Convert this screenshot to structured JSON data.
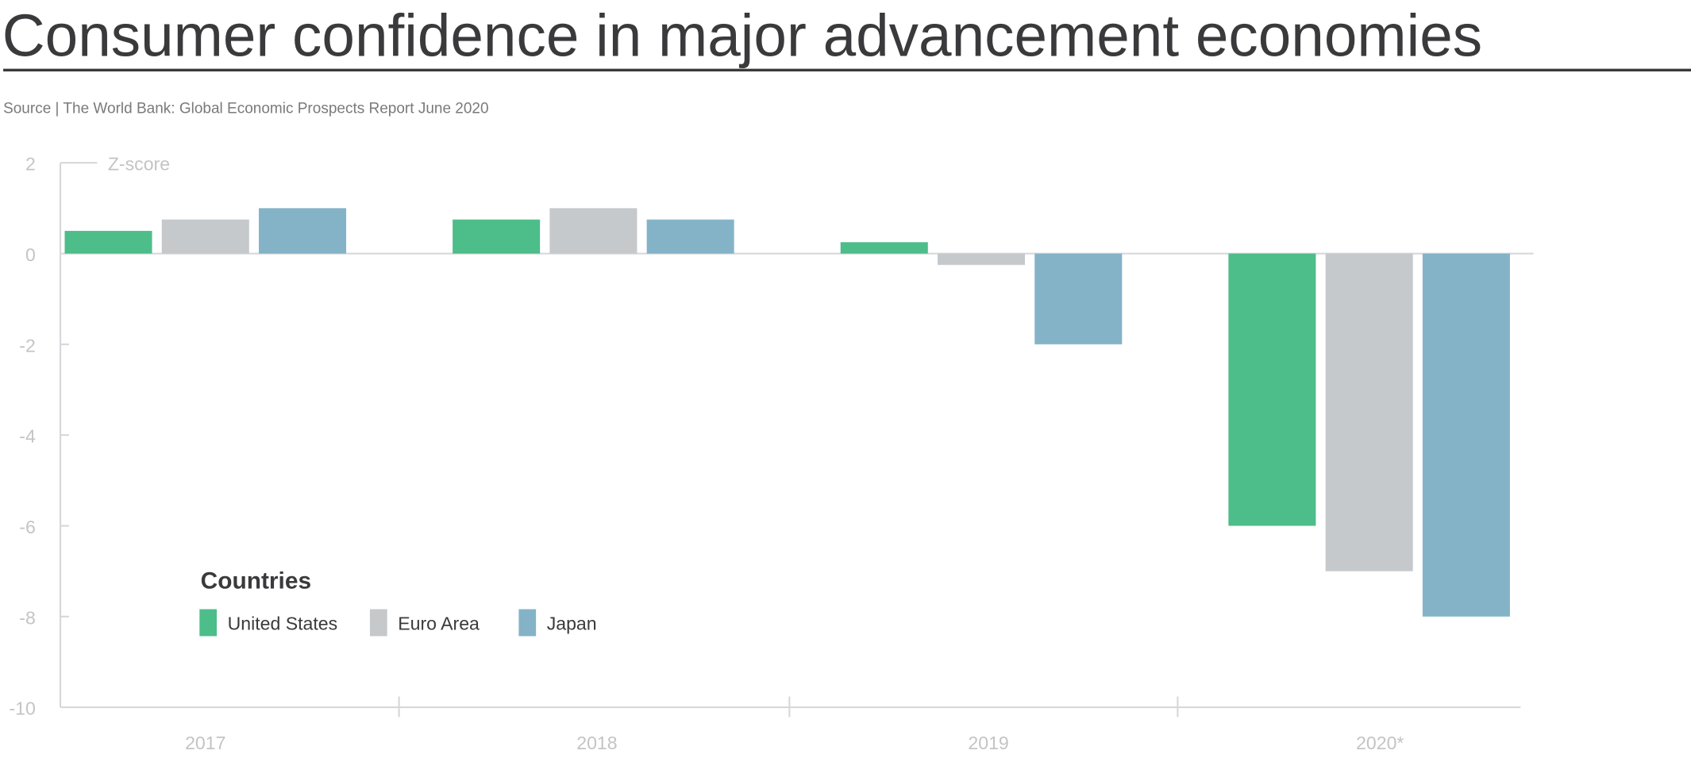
{
  "title": "Consumer confidence in major advancement economies",
  "source": "Source | The World Bank: Global Economic Prospects Report June 2020",
  "chart_data": {
    "type": "bar",
    "title": "Consumer confidence in major advancement economies",
    "ylabel": "Z-score",
    "xlabel": "",
    "ylim": [
      -10,
      2
    ],
    "yticks": [
      2,
      0,
      -2,
      -4,
      -6,
      -8,
      -10
    ],
    "categories": [
      "2017",
      "2018",
      "2019",
      "2020*"
    ],
    "series": [
      {
        "name": "United States",
        "color": "#4dbd8a",
        "values": [
          0.5,
          0.75,
          0.25,
          -6
        ]
      },
      {
        "name": "Euro Area",
        "color": "#c5c9cc",
        "values": [
          0.75,
          1.0,
          -0.25,
          -7
        ]
      },
      {
        "name": "Japan",
        "color": "#84b3c8",
        "values": [
          1.0,
          0.75,
          -2,
          -8
        ]
      }
    ],
    "legend_title": "Countries",
    "legend_position": "bottom-left",
    "grid": false
  }
}
